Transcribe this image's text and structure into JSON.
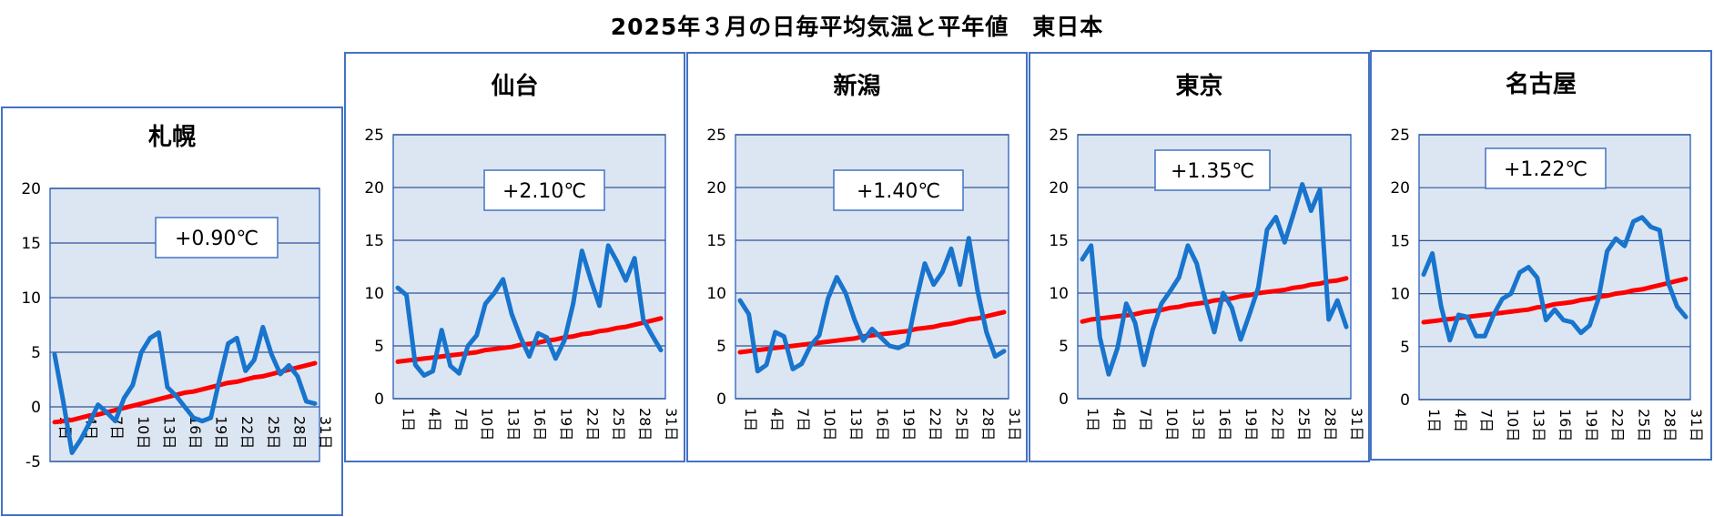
{
  "title": "2025年３月の日毎平均気温と平年値　東日本",
  "colors": {
    "plot_bg": "#dce6f2",
    "grid": "#2f5597",
    "border": "#4472c4",
    "actual_line": "#1874cd",
    "normal_line": "#ff0000"
  },
  "x_tick_labels": [
    "1日",
    "4日",
    "7日",
    "10日",
    "13日",
    "16日",
    "19日",
    "22日",
    "25日",
    "28日",
    "31日"
  ],
  "chart_data": [
    {
      "type": "line",
      "title": "札幌",
      "annotation": "+0.90℃",
      "ylim": [
        -5,
        20
      ],
      "yticks": [
        -5,
        0,
        5,
        10,
        15,
        20
      ],
      "x": [
        1,
        2,
        3,
        4,
        5,
        6,
        7,
        8,
        9,
        10,
        11,
        12,
        13,
        14,
        15,
        16,
        17,
        18,
        19,
        20,
        21,
        22,
        23,
        24,
        25,
        26,
        27,
        28,
        29,
        30,
        31
      ],
      "series": [
        {
          "values": [
            4.8,
            0.5,
            -4.2,
            -3.0,
            -1.5,
            0.2,
            -0.5,
            -1.3,
            0.8,
            2.0,
            5.0,
            6.3,
            6.8,
            1.8,
            1.0,
            0.0,
            -1.0,
            -1.3,
            -1.0,
            2.5,
            5.8,
            6.3,
            3.3,
            4.3,
            7.3,
            4.8,
            3.0,
            3.8,
            2.8,
            0.5,
            0.3
          ]
        },
        {
          "values": [
            -1.4,
            -1.3,
            -1.2,
            -1.0,
            -0.8,
            -0.7,
            -0.5,
            -0.3,
            -0.1,
            0.1,
            0.3,
            0.5,
            0.7,
            0.9,
            1.1,
            1.3,
            1.4,
            1.6,
            1.8,
            2.0,
            2.2,
            2.3,
            2.5,
            2.7,
            2.8,
            3.0,
            3.2,
            3.4,
            3.6,
            3.8,
            4.0
          ]
        }
      ]
    },
    {
      "type": "line",
      "title": "仙台",
      "annotation": "+2.10℃",
      "ylim": [
        0,
        25
      ],
      "yticks": [
        0,
        5,
        10,
        15,
        20,
        25
      ],
      "x": [
        1,
        2,
        3,
        4,
        5,
        6,
        7,
        8,
        9,
        10,
        11,
        12,
        13,
        14,
        15,
        16,
        17,
        18,
        19,
        20,
        21,
        22,
        23,
        24,
        25,
        26,
        27,
        28,
        29,
        30,
        31
      ],
      "series": [
        {
          "values": [
            10.5,
            9.8,
            3.2,
            2.2,
            2.6,
            6.5,
            3.1,
            2.4,
            5.0,
            6.0,
            9.0,
            10.0,
            11.3,
            8.0,
            5.8,
            4.0,
            6.2,
            5.8,
            3.8,
            5.5,
            9.0,
            14.0,
            11.3,
            8.8,
            14.5,
            13.0,
            11.2,
            13.3,
            7.5,
            6.0,
            4.6
          ]
        },
        {
          "values": [
            3.5,
            3.6,
            3.7,
            3.8,
            3.9,
            4.0,
            4.1,
            4.2,
            4.3,
            4.4,
            4.6,
            4.7,
            4.8,
            4.9,
            5.1,
            5.2,
            5.3,
            5.5,
            5.6,
            5.8,
            5.9,
            6.1,
            6.2,
            6.4,
            6.5,
            6.7,
            6.8,
            7.0,
            7.2,
            7.4,
            7.6
          ]
        }
      ]
    },
    {
      "type": "line",
      "title": "新潟",
      "annotation": "+1.40℃",
      "ylim": [
        0,
        25
      ],
      "yticks": [
        0,
        5,
        10,
        15,
        20,
        25
      ],
      "x": [
        1,
        2,
        3,
        4,
        5,
        6,
        7,
        8,
        9,
        10,
        11,
        12,
        13,
        14,
        15,
        16,
        17,
        18,
        19,
        20,
        21,
        22,
        23,
        24,
        25,
        26,
        27,
        28,
        29,
        30,
        31
      ],
      "series": [
        {
          "values": [
            9.3,
            8.0,
            2.6,
            3.2,
            6.3,
            5.9,
            2.8,
            3.3,
            5.0,
            6.0,
            9.5,
            11.5,
            10.0,
            7.5,
            5.5,
            6.6,
            5.8,
            5.0,
            4.8,
            5.2,
            9.2,
            12.8,
            10.8,
            12.0,
            14.2,
            10.8,
            15.2,
            10.2,
            6.3,
            4.0,
            4.5
          ]
        },
        {
          "values": [
            4.4,
            4.5,
            4.6,
            4.7,
            4.8,
            4.9,
            5.0,
            5.1,
            5.2,
            5.3,
            5.4,
            5.5,
            5.6,
            5.7,
            5.9,
            6.0,
            6.1,
            6.2,
            6.3,
            6.4,
            6.6,
            6.7,
            6.8,
            7.0,
            7.1,
            7.3,
            7.5,
            7.6,
            7.8,
            8.0,
            8.2
          ]
        }
      ]
    },
    {
      "type": "line",
      "title": "東京",
      "annotation": "+1.35℃",
      "ylim": [
        0,
        25
      ],
      "yticks": [
        0,
        5,
        10,
        15,
        20,
        25
      ],
      "x": [
        1,
        2,
        3,
        4,
        5,
        6,
        7,
        8,
        9,
        10,
        11,
        12,
        13,
        14,
        15,
        16,
        17,
        18,
        19,
        20,
        21,
        22,
        23,
        24,
        25,
        26,
        27,
        28,
        29,
        30,
        31
      ],
      "series": [
        {
          "values": [
            13.2,
            14.5,
            5.8,
            2.3,
            4.8,
            9.0,
            7.2,
            3.2,
            6.5,
            9.0,
            10.2,
            11.5,
            14.5,
            12.8,
            9.3,
            6.3,
            10.0,
            8.6,
            5.6,
            8.0,
            10.5,
            16.0,
            17.2,
            14.8,
            17.5,
            20.3,
            17.8,
            19.8,
            7.5,
            9.3,
            6.8
          ]
        },
        {
          "values": [
            7.3,
            7.5,
            7.6,
            7.7,
            7.8,
            7.9,
            8.0,
            8.2,
            8.3,
            8.4,
            8.6,
            8.7,
            8.9,
            9.0,
            9.1,
            9.3,
            9.4,
            9.5,
            9.7,
            9.8,
            10.0,
            10.1,
            10.2,
            10.3,
            10.5,
            10.6,
            10.8,
            10.9,
            11.1,
            11.2,
            11.4
          ]
        }
      ]
    },
    {
      "type": "line",
      "title": "名古屋",
      "annotation": "+1.22℃",
      "ylim": [
        0,
        25
      ],
      "yticks": [
        0,
        5,
        10,
        15,
        20,
        25
      ],
      "x": [
        1,
        2,
        3,
        4,
        5,
        6,
        7,
        8,
        9,
        10,
        11,
        12,
        13,
        14,
        15,
        16,
        17,
        18,
        19,
        20,
        21,
        22,
        23,
        24,
        25,
        26,
        27,
        28,
        29,
        30,
        31
      ],
      "series": [
        {
          "values": [
            11.8,
            13.8,
            8.8,
            5.6,
            8.0,
            7.8,
            6.0,
            6.0,
            8.0,
            9.5,
            10.0,
            12.0,
            12.5,
            11.5,
            7.5,
            8.5,
            7.5,
            7.3,
            6.3,
            7.0,
            9.5,
            14.0,
            15.2,
            14.5,
            16.8,
            17.2,
            16.3,
            16.0,
            11.0,
            8.8,
            7.8
          ]
        },
        {
          "values": [
            7.3,
            7.4,
            7.5,
            7.6,
            7.7,
            7.8,
            7.9,
            8.0,
            8.1,
            8.2,
            8.3,
            8.4,
            8.5,
            8.7,
            8.8,
            9.0,
            9.1,
            9.2,
            9.4,
            9.5,
            9.7,
            9.8,
            10.0,
            10.1,
            10.3,
            10.4,
            10.6,
            10.8,
            11.0,
            11.2,
            11.4
          ]
        }
      ]
    }
  ]
}
